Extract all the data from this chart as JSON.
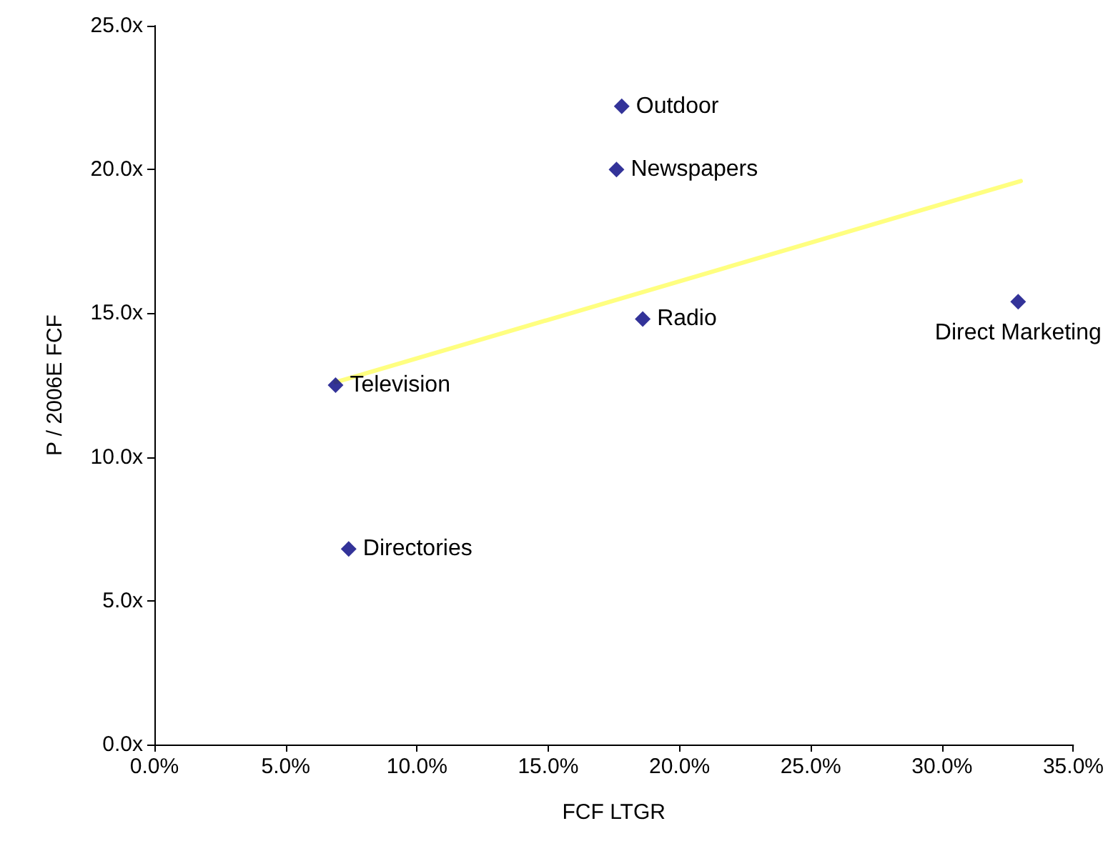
{
  "chart_data": {
    "type": "scatter",
    "xlabel": "FCF LTGR",
    "ylabel": "P / 2006E FCF",
    "series": [
      {
        "type": "scatter",
        "color": "#000080",
        "marker": "diamond",
        "x": [
          17.8,
          17.6,
          18.6,
          32.9,
          6.9,
          7.4
        ],
        "values": [
          22.2,
          20.0,
          14.8,
          15.4,
          12.5,
          6.8
        ]
      },
      {
        "type": "line",
        "color": "#ffff80",
        "marker": "none",
        "x": [
          6.9,
          33.0
        ],
        "values": [
          12.6,
          19.6
        ]
      }
    ],
    "annotations": [
      {
        "text": "Outdoor",
        "x": 17.8,
        "y": 22.2
      },
      {
        "text": "Newspapers",
        "x": 17.6,
        "y": 20.0
      },
      {
        "text": "Radio",
        "x": 18.6,
        "y": 14.8
      },
      {
        "text": "Direct Marketing",
        "x": 32.9,
        "y": 15.4
      },
      {
        "text": "Television",
        "x": 6.9,
        "y": 12.5
      },
      {
        "text": "Directories",
        "x": 7.4,
        "y": 6.8
      }
    ],
    "xlim": [
      0,
      35
    ],
    "xticks": [
      {
        "value": 0,
        "label": "0.0%"
      },
      {
        "value": 5,
        "label": "5.0%"
      },
      {
        "value": 10,
        "label": "10.0%"
      },
      {
        "value": 15,
        "label": "15.0%"
      },
      {
        "value": 20,
        "label": "20.0%"
      },
      {
        "value": 25,
        "label": "25.0%"
      },
      {
        "value": 30,
        "label": "30.0%"
      },
      {
        "value": 35,
        "label": "35.0%"
      }
    ],
    "ylim": [
      0,
      25
    ],
    "yticks": [
      {
        "value": 0,
        "label": "0.0x"
      },
      {
        "value": 5,
        "label": "5.0x"
      },
      {
        "value": 10,
        "label": "10.0x"
      },
      {
        "value": 15,
        "label": "15.0x"
      },
      {
        "value": 20,
        "label": "20.0x"
      },
      {
        "value": 25,
        "label": "25.0x"
      }
    ],
    "tick_labels": "xy"
  }
}
